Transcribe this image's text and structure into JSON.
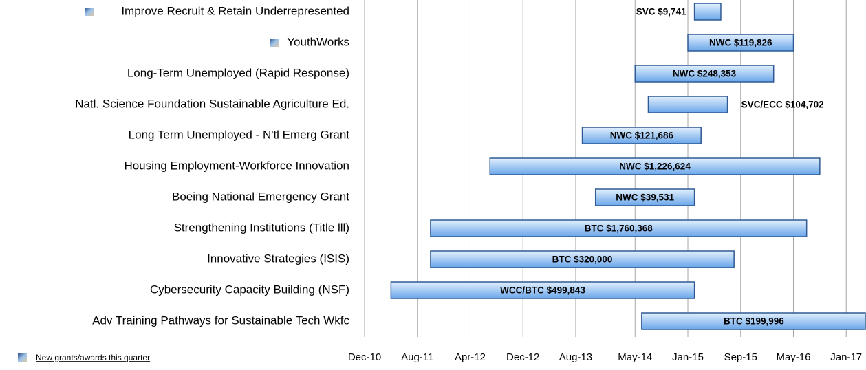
{
  "chart_data": {
    "type": "gantt",
    "tasks": [
      {
        "name": "Improve Recruit & Retain Underrepresented",
        "start": "2015-02",
        "end": "2015-06",
        "label": "SVC $9,741",
        "label_position": "left",
        "new": true
      },
      {
        "name": "YouthWorks",
        "start": "2015-01",
        "end": "2016-05",
        "label": "NWC $119,826",
        "label_position": "inside",
        "new": true
      },
      {
        "name": "Long-Term Unemployed (Rapid Response)",
        "start": "2014-05",
        "end": "2016-02",
        "label": "NWC  $248,353",
        "label_position": "inside",
        "new": false
      },
      {
        "name": "Natl. Science Foundation Sustainable Agriculture Ed.",
        "start": "2014-07",
        "end": "2015-07",
        "label": "SVC/ECC $104,702",
        "label_position": "right",
        "new": false
      },
      {
        "name": "Long Term Unemployed - N'tl Emerg Grant",
        "start": "2013-09",
        "end": "2015-03",
        "label": "NWC  $121,686",
        "label_position": "inside",
        "new": false
      },
      {
        "name": "Housing Employment-Workforce Innovation",
        "start": "2012-07",
        "end": "2016-09",
        "label": "NWC $1,226,624",
        "label_position": "inside",
        "new": false
      },
      {
        "name": "Boeing National Emergency Grant",
        "start": "2013-11",
        "end": "2015-02",
        "label": "NWC  $39,531",
        "label_position": "inside",
        "new": false
      },
      {
        "name": "Strengthening Institutions (Title lll)",
        "start": "2011-10",
        "end": "2016-07",
        "label": "BTC $1,760,368",
        "label_position": "inside",
        "new": false
      },
      {
        "name": "Innovative Strategies (ISIS)",
        "start": "2011-10",
        "end": "2015-08",
        "label": "BTC $320,000",
        "label_position": "inside",
        "new": false
      },
      {
        "name": "Cybersecurity Capacity Building (NSF)",
        "start": "2011-04",
        "end": "2015-02",
        "label": "WCC/BTC $499,843",
        "label_position": "inside",
        "new": false
      },
      {
        "name": "Adv Training Pathways for Sustainable Tech Wkfc",
        "start": "2014-06",
        "end": "2017-04",
        "label": "BTC  $199,996",
        "label_position": "inside",
        "new": false
      }
    ],
    "xlim": [
      "2010-12",
      "2017-04"
    ],
    "xticks": [
      {
        "value": "2010-12",
        "label": "Dec-10"
      },
      {
        "value": "2011-08",
        "label": "Aug-11"
      },
      {
        "value": "2012-04",
        "label": "Apr-12"
      },
      {
        "value": "2012-12",
        "label": "Dec-12"
      },
      {
        "value": "2013-08",
        "label": "Aug-13"
      },
      {
        "value": "2014-05",
        "label": "May-14"
      },
      {
        "value": "2015-01",
        "label": "Jan-15"
      },
      {
        "value": "2015-09",
        "label": "Sep-15"
      },
      {
        "value": "2016-05",
        "label": "May-16"
      },
      {
        "value": "2017-01",
        "label": "Jan-17"
      }
    ],
    "grid": true,
    "color": "#6aa6ea",
    "legend": "New grants/awards this quarter"
  }
}
